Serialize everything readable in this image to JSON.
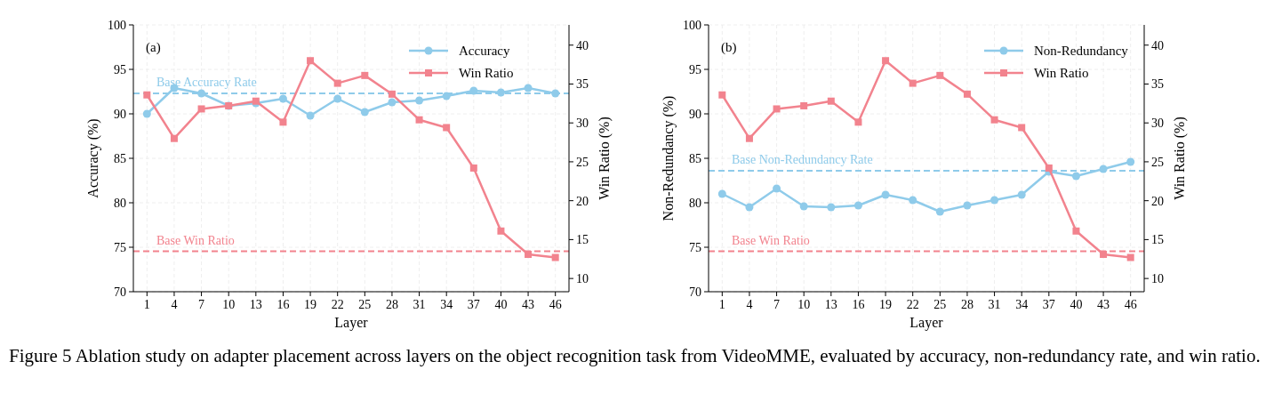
{
  "chart_data": [
    {
      "type": "line",
      "xlabel": "Layer",
      "ylabel": "Accuracy (%)",
      "y2label": "Win Ratio (%)",
      "categories": [
        "1",
        "4",
        "7",
        "10",
        "13",
        "16",
        "19",
        "22",
        "25",
        "28",
        "31",
        "34",
        "37",
        "40",
        "43",
        "46"
      ],
      "series": [
        {
          "name": "Accuracy",
          "color": "#8fcbea",
          "marker": "circle",
          "values": [
            90.0,
            92.9,
            92.3,
            90.9,
            91.2,
            91.7,
            89.8,
            91.7,
            90.2,
            91.3,
            91.5,
            92.0,
            92.6,
            92.4,
            92.9,
            92.3
          ]
        },
        {
          "name": "Win Ratio",
          "color": "#f2838e",
          "marker": "square",
          "axis": "y2",
          "values": [
            33.6,
            28.0,
            31.8,
            32.2,
            32.8,
            30.1,
            38.0,
            35.1,
            36.1,
            33.7,
            30.4,
            29.4,
            24.2,
            16.1,
            13.1,
            12.7
          ]
        }
      ],
      "ylim": [
        70,
        100
      ],
      "yticks": [
        70,
        75,
        80,
        85,
        90,
        95,
        100
      ],
      "y2lim": [
        8.3,
        42.6
      ],
      "y2ticks": [
        10,
        15,
        20,
        25,
        30,
        35,
        40
      ],
      "ref_lines": [
        {
          "axis": "y",
          "value": 92.3,
          "label": "Base Accuracy Rate",
          "color": "#8fcbea",
          "line_style": "dashed"
        },
        {
          "axis": "y2",
          "value": 13.5,
          "label": "Base Win Ratio",
          "color": "#f2838e",
          "line_style": "dashed"
        }
      ],
      "annotations": [
        "(a)"
      ],
      "grid": true,
      "legend": "top right",
      "line_style": "solid"
    },
    {
      "type": "line",
      "xlabel": "Layer",
      "ylabel": "Non-Redundancy (%)",
      "y2label": "Win Ratio (%)",
      "categories": [
        "1",
        "4",
        "7",
        "10",
        "13",
        "16",
        "19",
        "22",
        "25",
        "28",
        "31",
        "34",
        "37",
        "40",
        "43",
        "46"
      ],
      "series": [
        {
          "name": "Non-Redundancy",
          "color": "#8fcbea",
          "marker": "circle",
          "values": [
            81.0,
            79.5,
            81.6,
            79.6,
            79.5,
            79.7,
            80.9,
            80.3,
            79.0,
            79.7,
            80.3,
            80.9,
            83.5,
            83.0,
            83.8,
            84.6
          ]
        },
        {
          "name": "Win Ratio",
          "color": "#f2838e",
          "marker": "square",
          "axis": "y2",
          "values": [
            33.6,
            28.0,
            31.8,
            32.2,
            32.8,
            30.1,
            38.0,
            35.1,
            36.1,
            33.7,
            30.4,
            29.4,
            24.2,
            16.1,
            13.1,
            12.7
          ]
        }
      ],
      "ylim": [
        70,
        100
      ],
      "yticks": [
        70,
        75,
        80,
        85,
        90,
        95,
        100
      ],
      "y2lim": [
        8.3,
        42.6
      ],
      "y2ticks": [
        10,
        15,
        20,
        25,
        30,
        35,
        40
      ],
      "ref_lines": [
        {
          "axis": "y",
          "value": 83.6,
          "label": "Base Non-Redundancy Rate",
          "color": "#8fcbea",
          "line_style": "dashed"
        },
        {
          "axis": "y2",
          "value": 13.5,
          "label": "Base Win Ratio",
          "color": "#f2838e",
          "line_style": "dashed"
        }
      ],
      "annotations": [
        "(b)",
        "Figure 5 Ablation study on adapter placement across layers on the object recognition task from VideoMME, evaluated by accuracy, non-redundancy rate, and win ratio."
      ],
      "grid": true,
      "legend": "top right",
      "line_style": "solid"
    }
  ]
}
